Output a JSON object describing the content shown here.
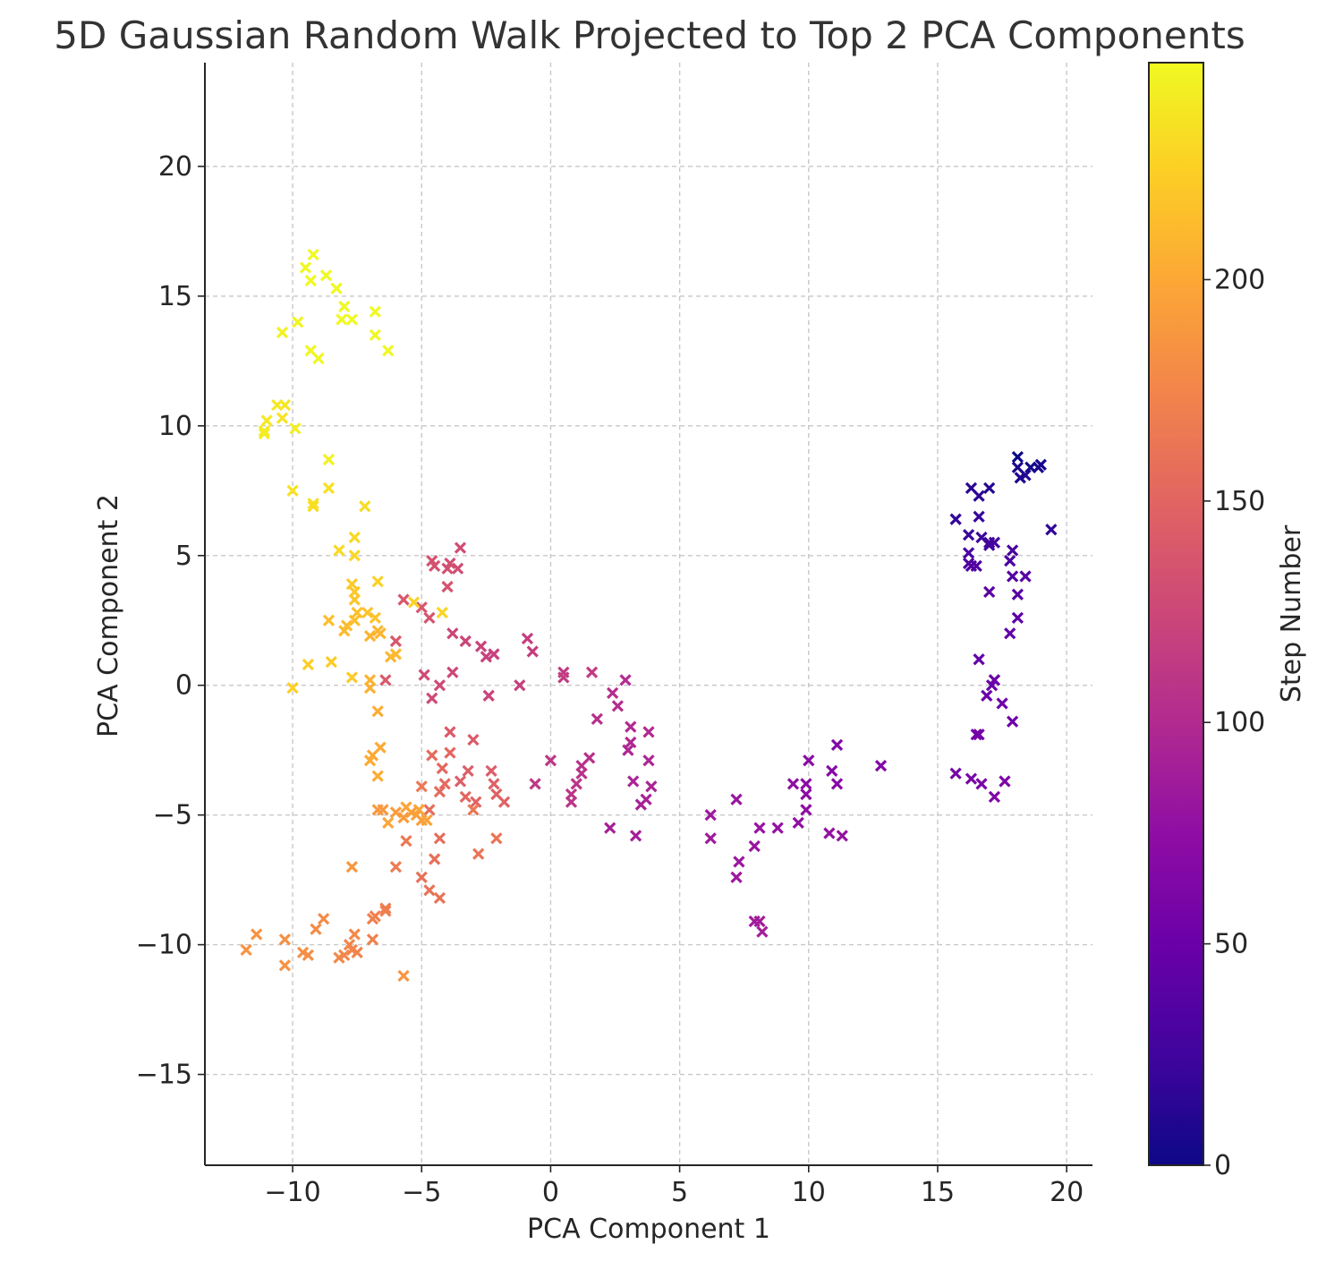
{
  "chart_data": {
    "type": "scatter",
    "title": "5D Gaussian Random Walk Projected to Top 2 PCA Components",
    "xlabel": "PCA Component 1",
    "ylabel": "PCA Component 2",
    "xlim": [
      -13.4,
      21
    ],
    "ylim": [
      -18.5,
      24
    ],
    "xticks": [
      -10,
      -5,
      0,
      5,
      10,
      15,
      20
    ],
    "yticks": [
      -15,
      -10,
      -5,
      0,
      5,
      10,
      15,
      20
    ],
    "xtick_labels": [
      "−10",
      "−5",
      "0",
      "5",
      "10",
      "15",
      "20"
    ],
    "ytick_labels": [
      "−15",
      "−10",
      "−5",
      "0",
      "5",
      "10",
      "15",
      "20"
    ],
    "grid": true,
    "marker": "x",
    "colormap": "plasma",
    "colorbar": {
      "label": "Step Number",
      "range": [
        0,
        249
      ],
      "ticks": [
        0,
        50,
        100,
        150,
        200
      ],
      "tick_labels": [
        "0",
        "50",
        "100",
        "150",
        "200"
      ]
    },
    "colormap_stops": [
      "#0d0887",
      "#41049d",
      "#6a00a8",
      "#8f0da4",
      "#b12a90",
      "#cc4778",
      "#e16462",
      "#f2844b",
      "#fca636",
      "#fcce25",
      "#f0f921"
    ],
    "points": [
      [
        18.1,
        8.8,
        0
      ],
      [
        18.6,
        8.4,
        2
      ],
      [
        19.0,
        8.5,
        4
      ],
      [
        18.9,
        8.4,
        5
      ],
      [
        18.1,
        8.4,
        7
      ],
      [
        18.2,
        8.0,
        9
      ],
      [
        18.4,
        8.1,
        10
      ],
      [
        17.0,
        7.6,
        12
      ],
      [
        16.3,
        7.6,
        14
      ],
      [
        16.6,
        7.3,
        15
      ],
      [
        19.4,
        6.0,
        17
      ],
      [
        15.7,
        6.4,
        18
      ],
      [
        16.6,
        6.5,
        20
      ],
      [
        16.2,
        5.8,
        21
      ],
      [
        16.7,
        5.7,
        23
      ],
      [
        17.0,
        5.5,
        25
      ],
      [
        17.0,
        5.4,
        26
      ],
      [
        17.2,
        5.5,
        27
      ],
      [
        17.9,
        5.2,
        29
      ],
      [
        16.2,
        5.1,
        30
      ],
      [
        17.8,
        4.8,
        31
      ],
      [
        16.3,
        4.6,
        33
      ],
      [
        16.5,
        4.6,
        34
      ],
      [
        16.2,
        4.7,
        35
      ],
      [
        17.9,
        4.2,
        36
      ],
      [
        18.4,
        4.2,
        38
      ],
      [
        18.1,
        3.5,
        39
      ],
      [
        17.0,
        3.6,
        41
      ],
      [
        18.1,
        2.6,
        42
      ],
      [
        17.8,
        2.0,
        44
      ],
      [
        16.6,
        1.0,
        45
      ],
      [
        17.2,
        0.2,
        47
      ],
      [
        17.1,
        0.0,
        48
      ],
      [
        17.2,
        0.2,
        49
      ],
      [
        16.9,
        -0.4,
        50
      ],
      [
        17.5,
        -0.7,
        52
      ],
      [
        17.9,
        -1.4,
        53
      ],
      [
        16.5,
        -1.9,
        55
      ],
      [
        16.6,
        -1.9,
        56
      ],
      [
        15.7,
        -3.4,
        58
      ],
      [
        16.3,
        -3.6,
        59
      ],
      [
        16.7,
        -3.8,
        60
      ],
      [
        17.6,
        -3.7,
        62
      ],
      [
        17.2,
        -4.3,
        63
      ],
      [
        12.8,
        -3.1,
        65
      ],
      [
        11.1,
        -2.3,
        66
      ],
      [
        10.9,
        -3.3,
        68
      ],
      [
        11.1,
        -3.8,
        69
      ],
      [
        10.0,
        -2.9,
        70
      ],
      [
        9.9,
        -3.8,
        71
      ],
      [
        9.9,
        -4.2,
        72
      ],
      [
        9.4,
        -3.8,
        74
      ],
      [
        9.9,
        -4.8,
        75
      ],
      [
        9.6,
        -5.3,
        76
      ],
      [
        10.8,
        -5.7,
        77
      ],
      [
        11.3,
        -5.8,
        78
      ],
      [
        8.8,
        -5.5,
        79
      ],
      [
        8.1,
        -5.5,
        80
      ],
      [
        7.9,
        -6.2,
        81
      ],
      [
        7.2,
        -4.4,
        82
      ],
      [
        7.3,
        -6.8,
        83
      ],
      [
        7.2,
        -7.4,
        84
      ],
      [
        6.2,
        -5.0,
        85
      ],
      [
        6.2,
        -5.9,
        86
      ],
      [
        7.9,
        -9.1,
        87
      ],
      [
        8.1,
        -9.1,
        88
      ],
      [
        8.2,
        -9.5,
        89
      ],
      [
        3.3,
        -5.8,
        90
      ],
      [
        2.3,
        -5.5,
        91
      ],
      [
        3.5,
        -4.6,
        92
      ],
      [
        3.7,
        -4.4,
        93
      ],
      [
        3.9,
        -3.9,
        94
      ],
      [
        3.2,
        -3.7,
        95
      ],
      [
        3.8,
        -2.9,
        96
      ],
      [
        3.0,
        -2.5,
        97
      ],
      [
        3.1,
        -2.2,
        98
      ],
      [
        3.1,
        -1.6,
        99
      ],
      [
        3.8,
        -1.8,
        100
      ],
      [
        2.9,
        0.2,
        101
      ],
      [
        2.6,
        -0.8,
        102
      ],
      [
        2.4,
        -0.3,
        103
      ],
      [
        1.8,
        -1.3,
        104
      ],
      [
        1.5,
        -2.8,
        105
      ],
      [
        1.2,
        -3.1,
        106
      ],
      [
        1.2,
        -3.4,
        107
      ],
      [
        1.0,
        -3.8,
        108
      ],
      [
        0.8,
        -4.2,
        109
      ],
      [
        0.8,
        -4.5,
        110
      ],
      [
        0.0,
        -2.9,
        111
      ],
      [
        -0.6,
        -3.8,
        112
      ],
      [
        0.5,
        0.5,
        113
      ],
      [
        1.6,
        0.5,
        114
      ],
      [
        0.5,
        0.3,
        115
      ],
      [
        -0.7,
        1.3,
        116
      ],
      [
        -0.9,
        1.8,
        117
      ],
      [
        -1.2,
        -0.0,
        118
      ],
      [
        -2.2,
        1.2,
        119
      ],
      [
        -2.5,
        1.1,
        120
      ],
      [
        -2.7,
        1.5,
        121
      ],
      [
        -2.4,
        -0.4,
        122
      ],
      [
        -3.3,
        1.7,
        123
      ],
      [
        -3.8,
        2.0,
        124
      ],
      [
        -3.8,
        0.5,
        125
      ],
      [
        -4.3,
        0.0,
        126
      ],
      [
        -4.6,
        -0.5,
        127
      ],
      [
        -4.9,
        0.4,
        128
      ],
      [
        -3.6,
        4.5,
        129
      ],
      [
        -3.5,
        5.3,
        130
      ],
      [
        -3.9,
        4.7,
        131
      ],
      [
        -4.0,
        4.5,
        132
      ],
      [
        -4.5,
        4.6,
        133
      ],
      [
        -4.6,
        4.8,
        134
      ],
      [
        -4.0,
        3.8,
        135
      ],
      [
        -4.7,
        2.6,
        136
      ],
      [
        -5.0,
        3.0,
        137
      ],
      [
        -5.7,
        3.3,
        138
      ],
      [
        -6.0,
        1.7,
        139
      ],
      [
        -6.4,
        0.2,
        140
      ],
      [
        -3.9,
        -1.8,
        141
      ],
      [
        -3.0,
        -2.1,
        142
      ],
      [
        -2.3,
        -3.3,
        143
      ],
      [
        -3.2,
        -3.3,
        144
      ],
      [
        -3.5,
        -3.7,
        145
      ],
      [
        -2.2,
        -3.8,
        146
      ],
      [
        -2.1,
        -4.2,
        147
      ],
      [
        -1.8,
        -4.5,
        148
      ],
      [
        -2.9,
        -4.5,
        149
      ],
      [
        -3.3,
        -4.3,
        150
      ],
      [
        -3.9,
        -2.6,
        151
      ],
      [
        -4.2,
        -3.2,
        152
      ],
      [
        -4.1,
        -3.8,
        153
      ],
      [
        -4.3,
        -4.1,
        154
      ],
      [
        -4.6,
        -2.7,
        155
      ],
      [
        -4.7,
        -4.8,
        156
      ],
      [
        -4.3,
        -5.9,
        157
      ],
      [
        -4.5,
        -6.7,
        158
      ],
      [
        -5.0,
        -7.4,
        159
      ],
      [
        -4.7,
        -7.9,
        160
      ],
      [
        -4.3,
        -8.2,
        161
      ],
      [
        -2.8,
        -6.5,
        162
      ],
      [
        -2.1,
        -5.9,
        163
      ],
      [
        -3.0,
        -4.8,
        164
      ],
      [
        -5.0,
        -3.9,
        165
      ],
      [
        -5.6,
        -6.0,
        166
      ],
      [
        -6.0,
        -7.0,
        167
      ],
      [
        -6.4,
        -8.6,
        168
      ],
      [
        -6.4,
        -8.7,
        169
      ],
      [
        -6.8,
        -8.9,
        170
      ],
      [
        -6.9,
        -9.0,
        171
      ],
      [
        -6.9,
        -9.8,
        172
      ],
      [
        -7.5,
        -10.3,
        173
      ],
      [
        -7.7,
        -10.2,
        174
      ],
      [
        -7.8,
        -10.0,
        175
      ],
      [
        -8.0,
        -10.4,
        176
      ],
      [
        -8.2,
        -10.5,
        177
      ],
      [
        -7.6,
        -9.6,
        178
      ],
      [
        -8.8,
        -9.0,
        179
      ],
      [
        -9.1,
        -9.4,
        180
      ],
      [
        -9.4,
        -10.4,
        181
      ],
      [
        -9.6,
        -10.3,
        182
      ],
      [
        -10.3,
        -9.8,
        183
      ],
      [
        -10.3,
        -10.8,
        184
      ],
      [
        -11.4,
        -9.6,
        185
      ],
      [
        -11.8,
        -10.2,
        186
      ],
      [
        -5.7,
        -11.2,
        187
      ],
      [
        -7.7,
        -7.0,
        188
      ],
      [
        -6.5,
        -4.8,
        189
      ],
      [
        -6.7,
        -4.8,
        190
      ],
      [
        -6.0,
        -4.9,
        191
      ],
      [
        -5.7,
        -5.1,
        192
      ],
      [
        -5.4,
        -4.9,
        193
      ],
      [
        -5.2,
        -5.0,
        194
      ],
      [
        -5.0,
        -5.2,
        195
      ],
      [
        -4.8,
        -5.2,
        196
      ],
      [
        -5.1,
        -4.8,
        197
      ],
      [
        -5.6,
        -4.7,
        198
      ],
      [
        -6.3,
        -5.3,
        199
      ],
      [
        -6.9,
        -2.7,
        200
      ],
      [
        -6.6,
        -2.4,
        201
      ],
      [
        -7.0,
        -2.9,
        202
      ],
      [
        -6.7,
        -3.5,
        203
      ],
      [
        -6.7,
        -1.0,
        204
      ],
      [
        -7.0,
        -0.1,
        205
      ],
      [
        -7.0,
        0.2,
        206
      ],
      [
        -7.0,
        1.9,
        207
      ],
      [
        -6.6,
        2.0,
        208
      ],
      [
        -6.7,
        2.1,
        209
      ],
      [
        -6.2,
        1.1,
        210
      ],
      [
        -6.0,
        1.2,
        211
      ],
      [
        -8.0,
        2.1,
        212
      ],
      [
        -7.9,
        2.3,
        213
      ],
      [
        -8.6,
        2.5,
        214
      ],
      [
        -7.6,
        2.5,
        215
      ],
      [
        -7.5,
        2.8,
        216
      ],
      [
        -7.1,
        2.8,
        217
      ],
      [
        -6.8,
        2.6,
        218
      ],
      [
        -7.6,
        3.3,
        219
      ],
      [
        -7.6,
        3.6,
        220
      ],
      [
        -7.7,
        3.9,
        221
      ],
      [
        -7.7,
        0.3,
        222
      ],
      [
        -8.5,
        0.9,
        223
      ],
      [
        -9.4,
        0.8,
        224
      ],
      [
        -10.0,
        -0.1,
        225
      ],
      [
        -6.7,
        4.0,
        226
      ],
      [
        -5.3,
        3.2,
        227
      ],
      [
        -4.2,
        2.8,
        228
      ],
      [
        -7.6,
        5.0,
        229
      ],
      [
        -7.6,
        5.7,
        230
      ],
      [
        -8.2,
        5.2,
        231
      ],
      [
        -7.2,
        6.9,
        232
      ],
      [
        -9.2,
        6.9,
        233
      ],
      [
        -9.2,
        7.0,
        234
      ],
      [
        -8.6,
        7.6,
        235
      ],
      [
        -10.0,
        7.5,
        236
      ],
      [
        -10.4,
        10.3,
        237
      ],
      [
        -10.3,
        10.8,
        238
      ],
      [
        -10.6,
        10.8,
        239
      ],
      [
        -11.0,
        10.2,
        240
      ],
      [
        -11.1,
        9.8,
        241
      ],
      [
        -11.1,
        9.7,
        242
      ],
      [
        -9.9,
        9.9,
        243
      ],
      [
        -8.6,
        8.7,
        244
      ],
      [
        -10.4,
        13.6,
        245
      ],
      [
        -9.8,
        14.0,
        246
      ],
      [
        -9.3,
        12.9,
        247
      ],
      [
        -9.0,
        12.6,
        248
      ],
      [
        -8.1,
        14.1,
        249
      ],
      [
        -7.7,
        14.1,
        249
      ],
      [
        -8.0,
        14.6,
        249
      ],
      [
        -6.8,
        14.4,
        249
      ],
      [
        -6.8,
        13.5,
        248
      ],
      [
        -6.3,
        12.9,
        248
      ],
      [
        -8.3,
        15.3,
        249
      ],
      [
        -8.7,
        15.8,
        249
      ],
      [
        -9.3,
        15.6,
        249
      ],
      [
        -9.5,
        16.1,
        249
      ],
      [
        -9.2,
        16.6,
        249
      ]
    ]
  }
}
